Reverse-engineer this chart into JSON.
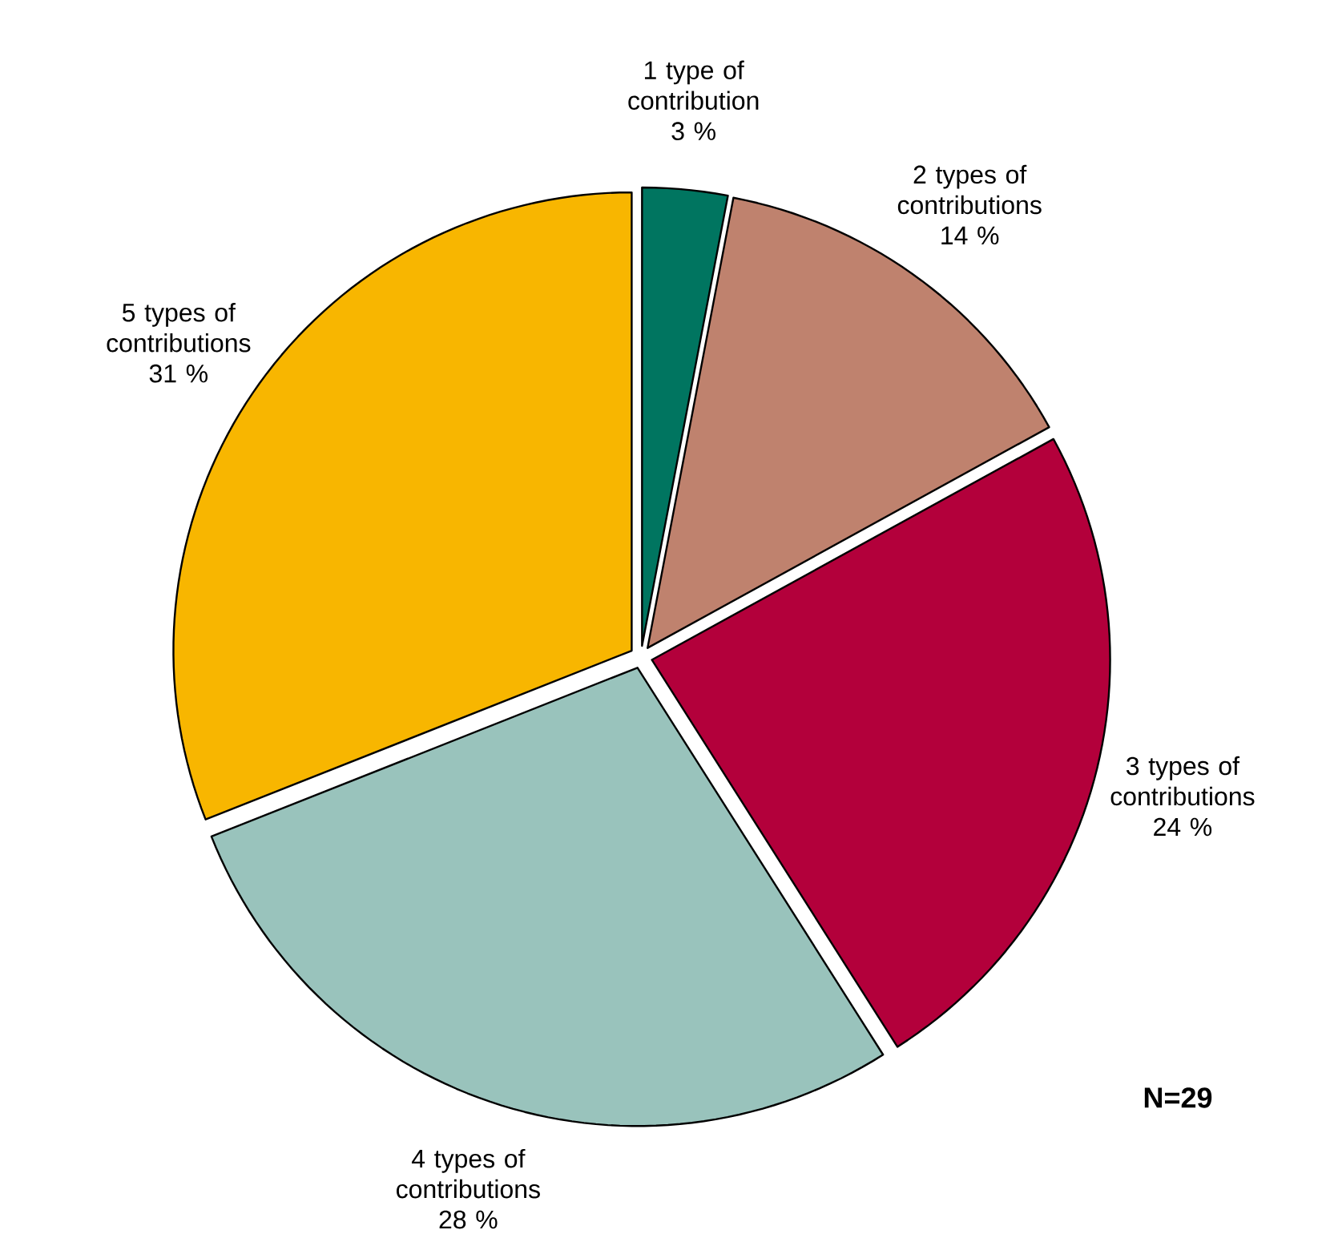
{
  "chart_data": {
    "type": "pie",
    "categories": [
      "1 type of contribution",
      "2 types of contributions",
      "3 types of contributions",
      "4 types of contributions",
      "5 types of contributions"
    ],
    "values": [
      3,
      14,
      24,
      28,
      31
    ],
    "value_labels": [
      "3 %",
      "14 %",
      "24 %",
      "28 %",
      "31 %"
    ],
    "colors": [
      "#007560",
      "#bf826e",
      "#b3003b",
      "#99c3bc",
      "#f8b600"
    ],
    "annotations": [
      "N=29"
    ]
  }
}
